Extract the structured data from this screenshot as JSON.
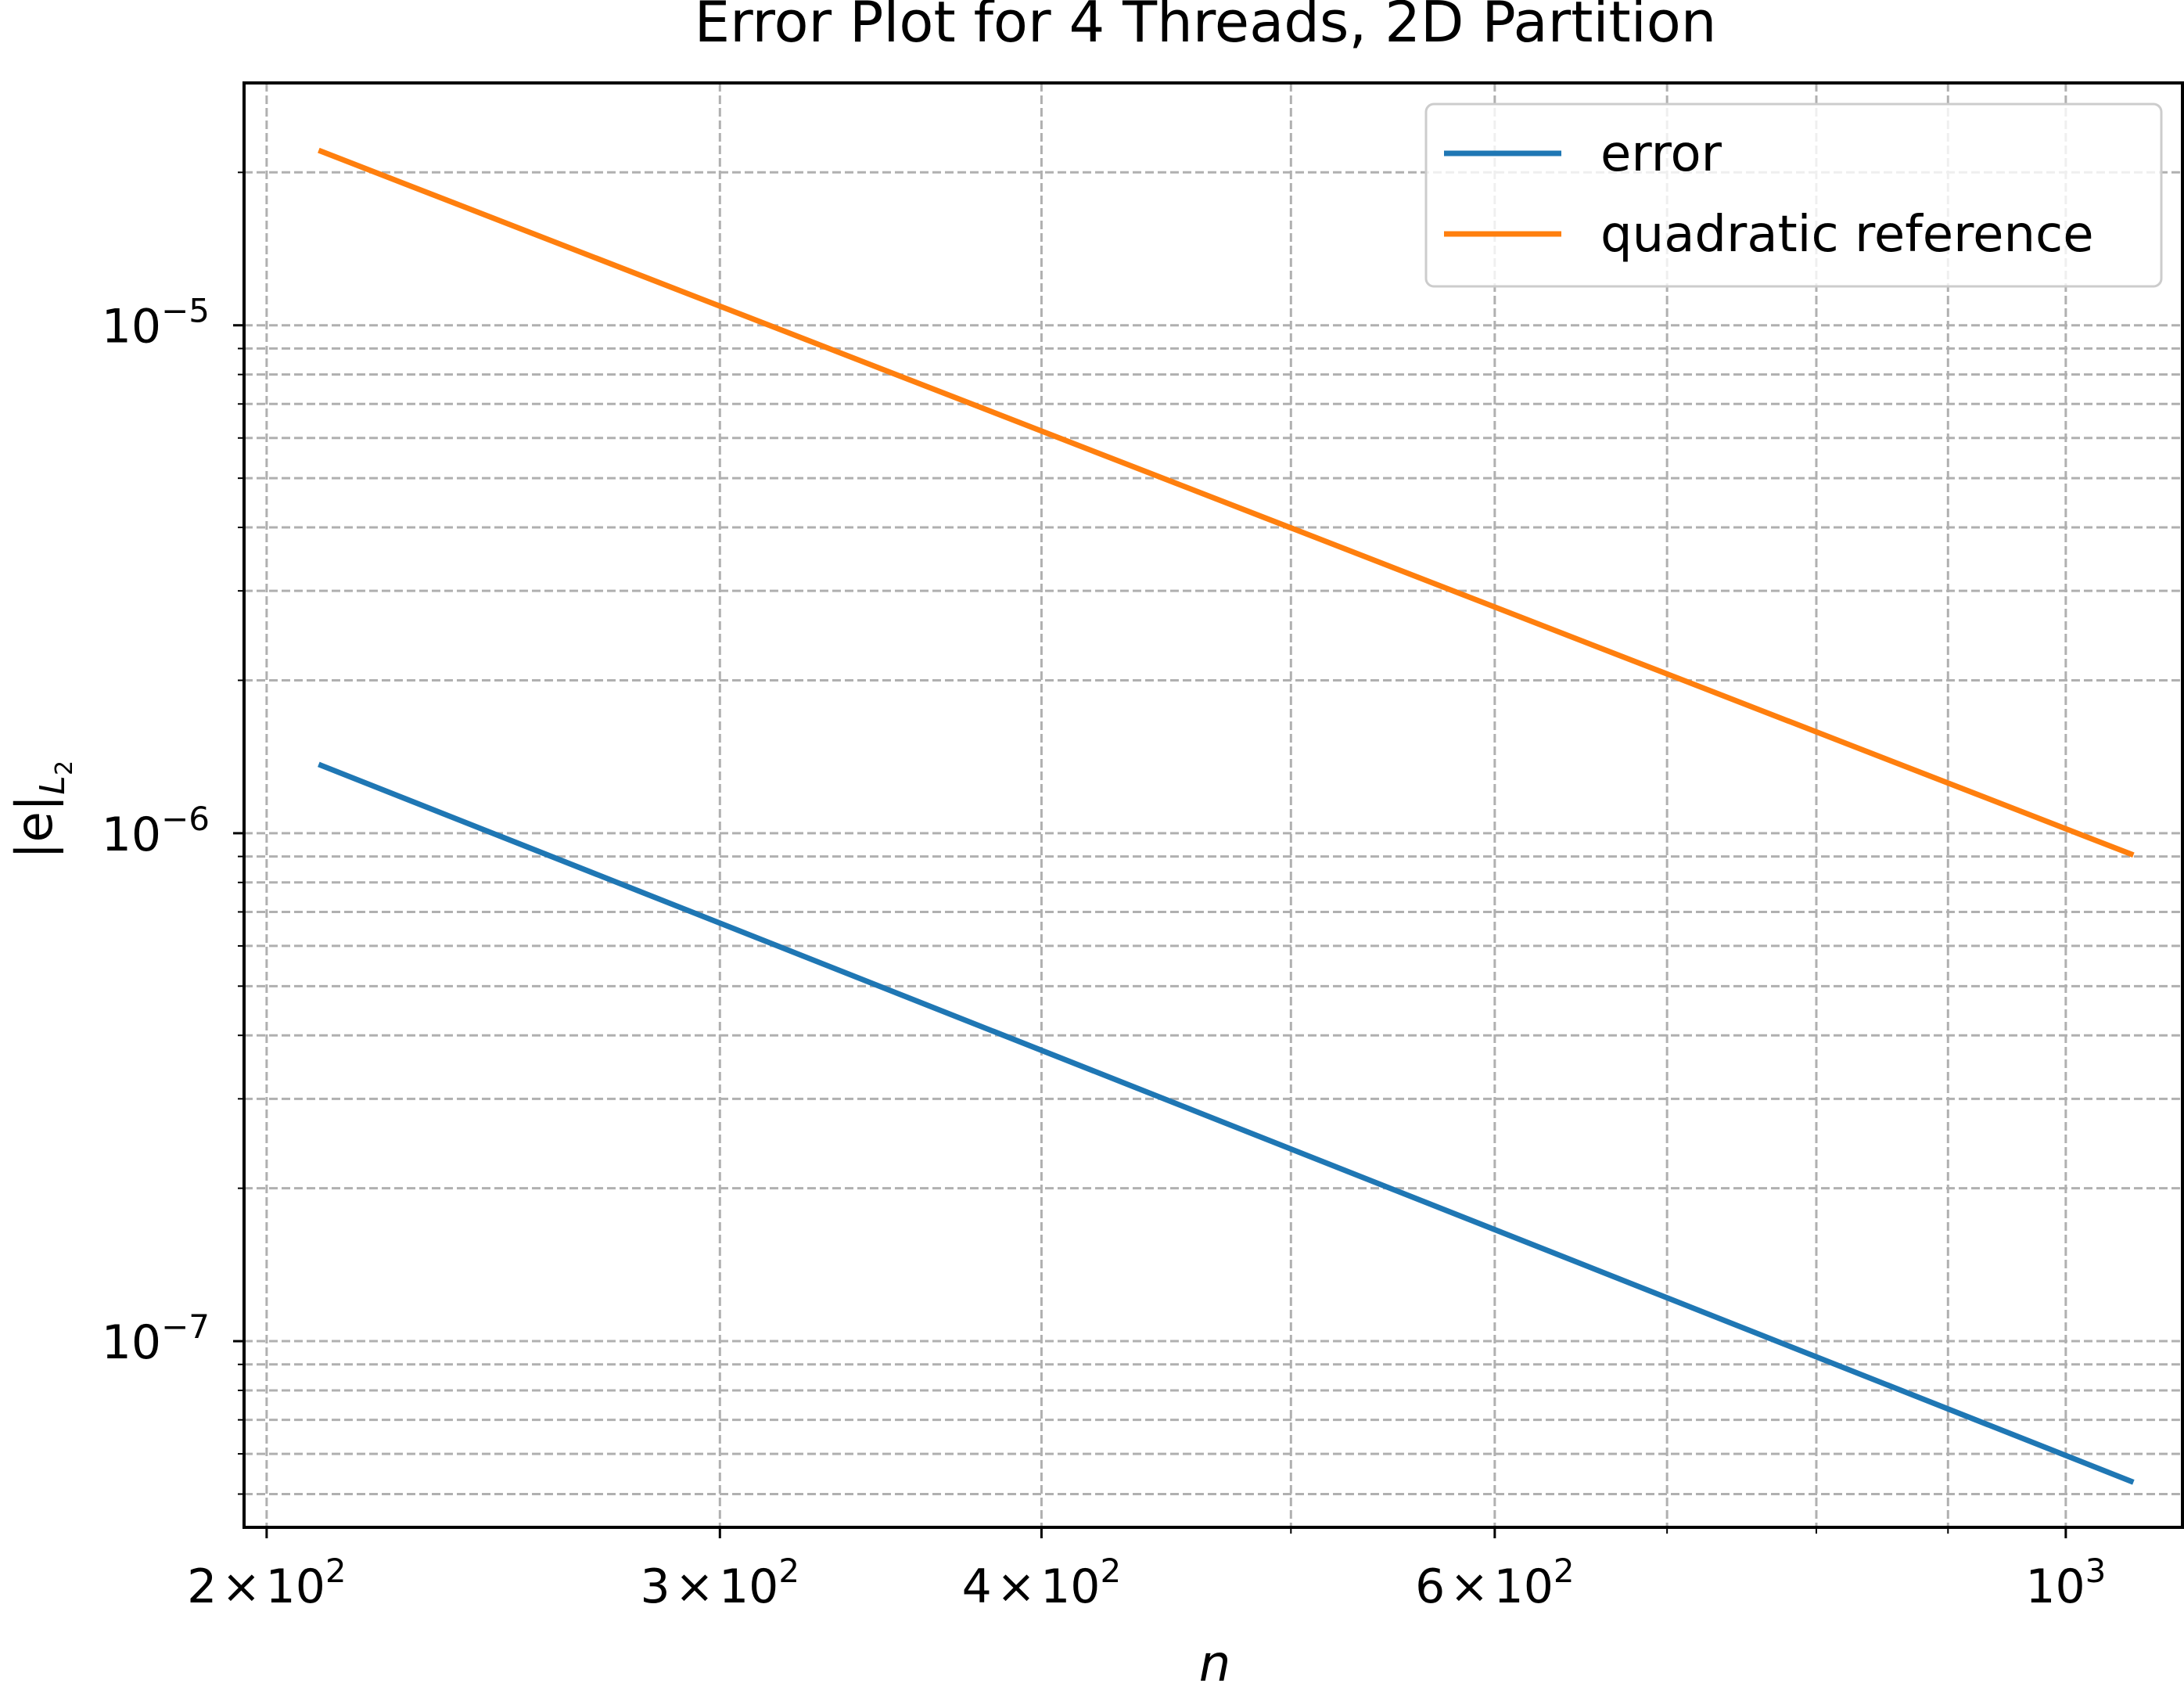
{
  "chart_data": {
    "type": "line",
    "title": "Error Plot for 4 Threads, 2D Partition",
    "xlabel": "n",
    "ylabel": "|e|_{L_2}",
    "xscale": "log",
    "yscale": "log",
    "xlim": [
      196,
      1110
    ],
    "ylim": [
      4.3e-08,
      3e-05
    ],
    "grid": true,
    "grid_style": "dashed",
    "legend_position": "top-right",
    "x_major_ticks": [
      {
        "value": 200,
        "mantissa": "2",
        "exp": "2"
      },
      {
        "value": 300,
        "mantissa": "3",
        "exp": "2"
      },
      {
        "value": 400,
        "mantissa": "4",
        "exp": "2"
      },
      {
        "value": 600,
        "mantissa": "6",
        "exp": "2"
      },
      {
        "value": 1000,
        "mantissa": "",
        "exp": "3"
      }
    ],
    "x_minor_ticks": [
      500,
      700,
      800,
      900
    ],
    "y_major_ticks": [
      {
        "value": 1e-05,
        "exp": "−5"
      },
      {
        "value": 1e-06,
        "exp": "−6"
      },
      {
        "value": 1e-07,
        "exp": "−7"
      }
    ],
    "y_minor_ticks": [
      5e-08,
      6e-08,
      7e-08,
      8e-08,
      9e-08,
      2e-07,
      3e-07,
      4e-07,
      5e-07,
      6e-07,
      7e-07,
      8e-07,
      9e-07,
      2e-06,
      3e-06,
      4e-06,
      5e-06,
      6e-06,
      7e-06,
      8e-06,
      9e-06,
      2e-05
    ],
    "series": [
      {
        "name": "error",
        "color": "#1f77b4",
        "x": [
          210,
          1060
        ],
        "y": [
          1.36e-06,
          5.3e-08
        ]
      },
      {
        "name": "quadratic reference",
        "color": "#ff7f0e",
        "x": [
          210,
          1060
        ],
        "y": [
          2.2e-05,
          9.1e-07
        ]
      }
    ]
  }
}
